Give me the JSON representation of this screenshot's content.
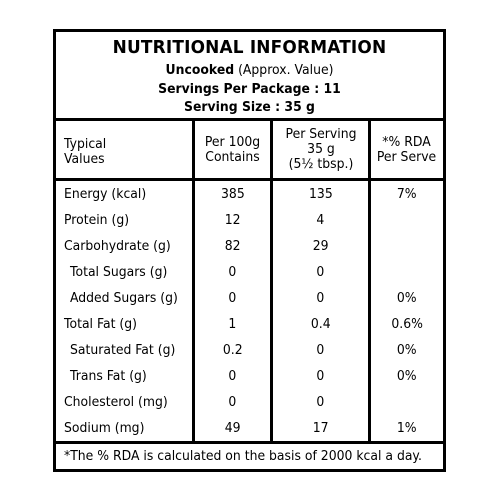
{
  "header": {
    "title": "NUTRITIONAL INFORMATION",
    "uncooked_bold": "Uncooked",
    "uncooked_note": " (Approx. Value)",
    "servings_per_package": "Servings Per Package : 11",
    "serving_size": "Serving Size : 35 g"
  },
  "columns": {
    "c0": [
      "Typical",
      "Values"
    ],
    "c1": [
      "Per 100g",
      "Contains"
    ],
    "c2": [
      "Per Serving",
      "35 g",
      "(5½ tbsp.)"
    ],
    "c3": [
      "*% RDA",
      "Per Serve"
    ]
  },
  "rows": [
    {
      "name": "Energy (kcal)",
      "per100": "385",
      "serving": "135",
      "rda": "7%",
      "indent": false
    },
    {
      "name": "Protein (g)",
      "per100": "12",
      "serving": "4",
      "rda": "",
      "indent": false
    },
    {
      "name": "Carbohydrate (g)",
      "per100": "82",
      "serving": "29",
      "rda": "",
      "indent": false
    },
    {
      "name": "Total Sugars (g)",
      "per100": "0",
      "serving": "0",
      "rda": "",
      "indent": true
    },
    {
      "name": "Added Sugars (g)",
      "per100": "0",
      "serving": "0",
      "rda": "0%",
      "indent": true
    },
    {
      "name": "Total Fat (g)",
      "per100": "1",
      "serving": "0.4",
      "rda": "0.6%",
      "indent": false
    },
    {
      "name": "Saturated Fat (g)",
      "per100": "0.2",
      "serving": "0",
      "rda": "0%",
      "indent": true
    },
    {
      "name": "Trans Fat (g)",
      "per100": "0",
      "serving": "0",
      "rda": "0%",
      "indent": true
    },
    {
      "name": "Cholesterol (mg)",
      "per100": "0",
      "serving": "0",
      "rda": "",
      "indent": false
    },
    {
      "name": "Sodium (mg)",
      "per100": "49",
      "serving": "17",
      "rda": "1%",
      "indent": false
    }
  ],
  "footer": "*The % RDA is calculated on the basis of 2000 kcal a day."
}
